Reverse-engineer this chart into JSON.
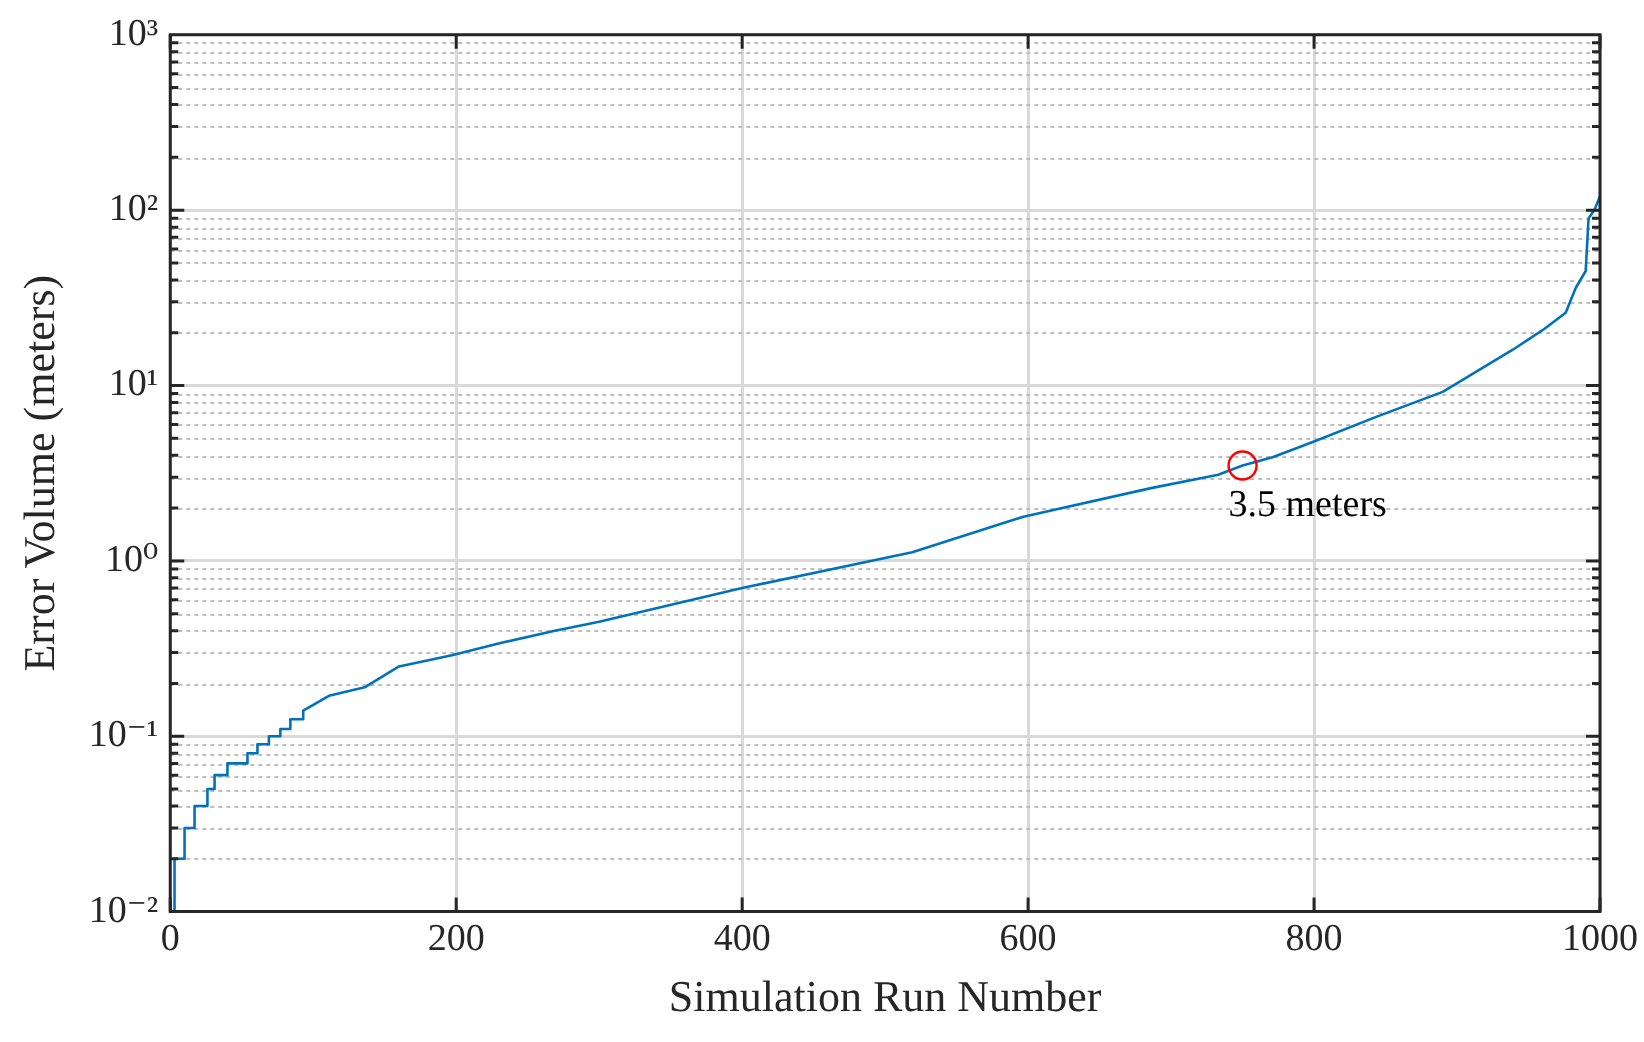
{
  "chart_data": {
    "type": "line",
    "xlabel": "Simulation Run Number",
    "ylabel": "Error Volume (meters)",
    "log": "y",
    "grid": true,
    "marker": "none",
    "line_style": "solid",
    "legend": false,
    "xlim": [
      0,
      1000
    ],
    "xticks": [
      0,
      200,
      400,
      600,
      800,
      1000
    ],
    "ylim": [
      0.01,
      1000
    ],
    "yticks": [
      {
        "value": 0.01,
        "label": "10⁻²"
      },
      {
        "value": 0.1,
        "label": "10⁻¹"
      },
      {
        "value": 1,
        "label": "10⁰"
      },
      {
        "value": 10,
        "label": "10¹"
      },
      {
        "value": 100,
        "label": "10²"
      },
      {
        "value": 1000,
        "label": "10³"
      }
    ],
    "annotations": [
      {
        "text": "3.5 meters",
        "x": 750,
        "y": 3.5
      }
    ],
    "series": [
      {
        "color": "#0072bd",
        "x": [
          0,
          3,
          3,
          10,
          10,
          17,
          17,
          26,
          26,
          31,
          31,
          40,
          40,
          54,
          54,
          61,
          61,
          69,
          69,
          77,
          77,
          84,
          84,
          93,
          93,
          111,
          136,
          160,
          197,
          231,
          269,
          300,
          400,
          519,
          596,
          686,
          733,
          750,
          771,
          800,
          843,
          890,
          939,
          961,
          976,
          983,
          990,
          992,
          996,
          1000
        ],
        "values": [
          0.01,
          0.01,
          0.02,
          0.02,
          0.03,
          0.03,
          0.04,
          0.04,
          0.05,
          0.05,
          0.06,
          0.06,
          0.07,
          0.07,
          0.08,
          0.08,
          0.09,
          0.09,
          0.1,
          0.1,
          0.11,
          0.11,
          0.125,
          0.125,
          0.14,
          0.17,
          0.19,
          0.25,
          0.29,
          0.34,
          0.4,
          0.45,
          0.7,
          1.12,
          1.78,
          2.6,
          3.1,
          3.5,
          3.9,
          4.8,
          6.6,
          9.2,
          16,
          21,
          26,
          36,
          45,
          90,
          100,
          120
        ]
      }
    ]
  }
}
